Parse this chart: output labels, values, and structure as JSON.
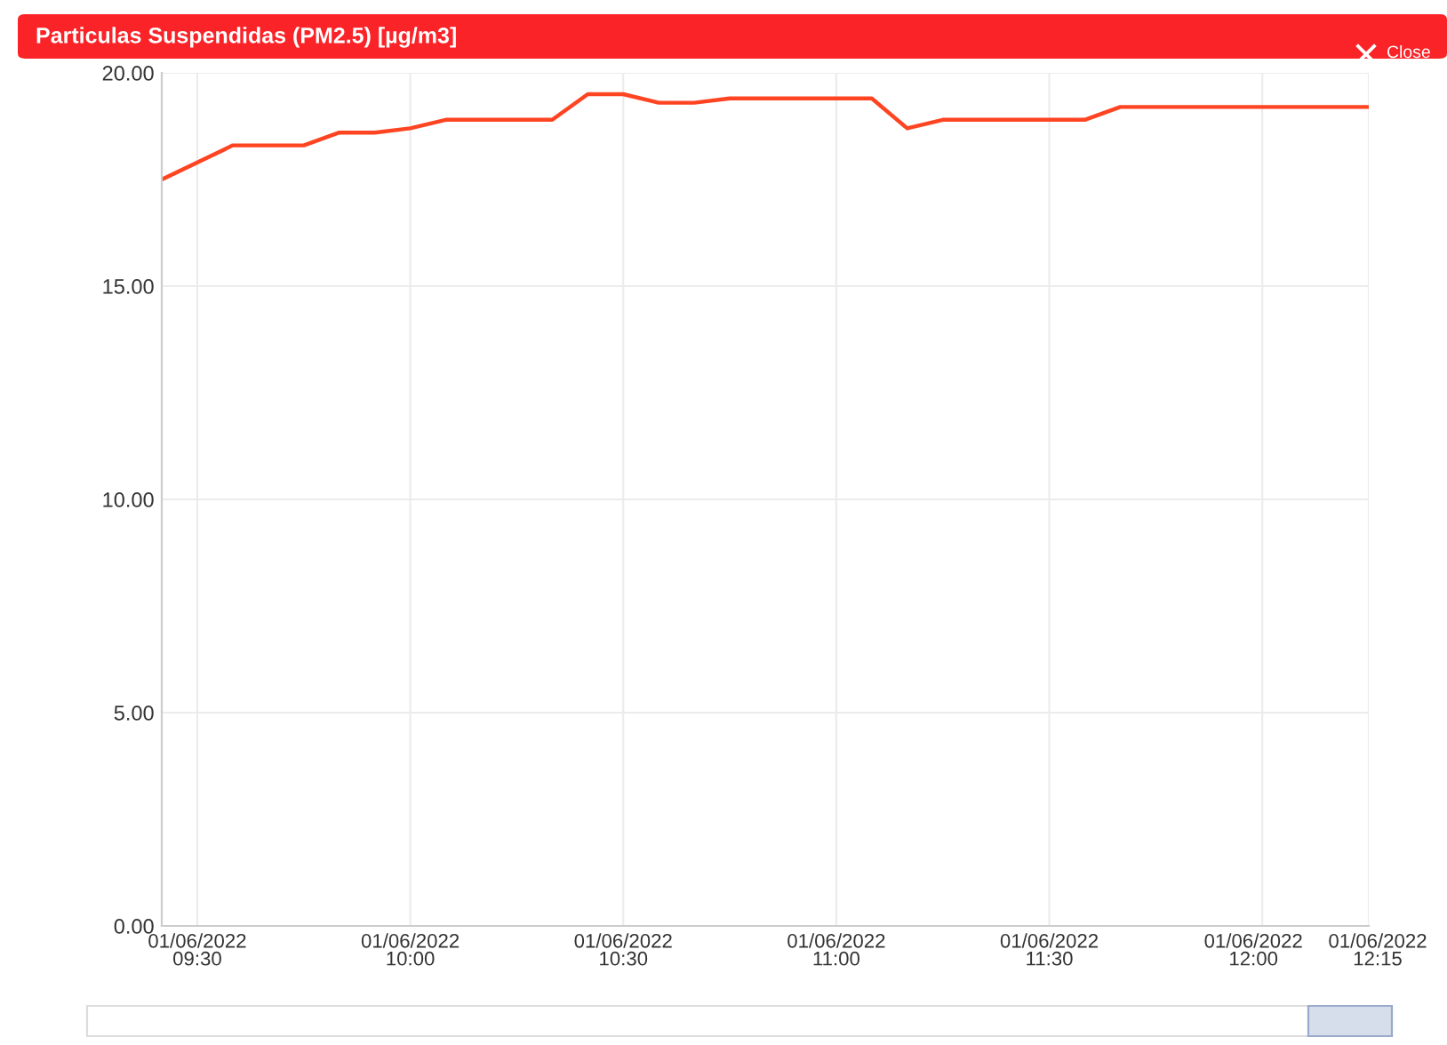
{
  "chart_data": {
    "type": "line",
    "title": "Particulas Suspendidas (PM2.5) [µg/m3]",
    "annotations": [
      "Close"
    ],
    "x": [
      "2022-06-01T09:25",
      "2022-06-01T09:35",
      "2022-06-01T09:45",
      "2022-06-01T09:50",
      "2022-06-01T09:55",
      "2022-06-01T10:00",
      "2022-06-01T10:05",
      "2022-06-01T10:20",
      "2022-06-01T10:25",
      "2022-06-01T10:30",
      "2022-06-01T10:35",
      "2022-06-01T10:40",
      "2022-06-01T10:45",
      "2022-06-01T11:05",
      "2022-06-01T11:10",
      "2022-06-01T11:15",
      "2022-06-01T11:35",
      "2022-06-01T11:40",
      "2022-06-01T12:15"
    ],
    "series": [
      {
        "color": "#ff4422",
        "values": [
          17.5,
          18.3,
          18.3,
          18.6,
          18.6,
          18.7,
          18.9,
          18.9,
          19.5,
          19.5,
          19.3,
          19.3,
          19.4,
          19.4,
          18.7,
          18.9,
          18.9,
          19.2,
          19.2
        ]
      }
    ],
    "xlim": [
      "2022-06-01T09:25",
      "2022-06-01T12:15"
    ],
    "xticks": [
      {
        "value": "2022-06-01T09:30",
        "label": "01/06/2022\n09:30"
      },
      {
        "value": "2022-06-01T10:00",
        "label": "01/06/2022\n10:00"
      },
      {
        "value": "2022-06-01T10:30",
        "label": "01/06/2022\n10:30"
      },
      {
        "value": "2022-06-01T11:00",
        "label": "01/06/2022\n11:00"
      },
      {
        "value": "2022-06-01T11:30",
        "label": "01/06/2022\n11:30"
      },
      {
        "value": "2022-06-01T12:00",
        "label": "01/06/2022\n12:00"
      },
      {
        "value": "2022-06-01T12:15",
        "label": "01/06/2022\n12:15"
      }
    ],
    "ylim": [
      0,
      20
    ],
    "yticks": [
      {
        "value": 0,
        "label": "0.00"
      },
      {
        "value": 5,
        "label": "5.00"
      },
      {
        "value": 10,
        "label": "10.00"
      },
      {
        "value": 15,
        "label": "15.00"
      },
      {
        "value": 20,
        "label": "20.00"
      }
    ],
    "grid": true,
    "marker": "none",
    "line_style": "solid"
  }
}
